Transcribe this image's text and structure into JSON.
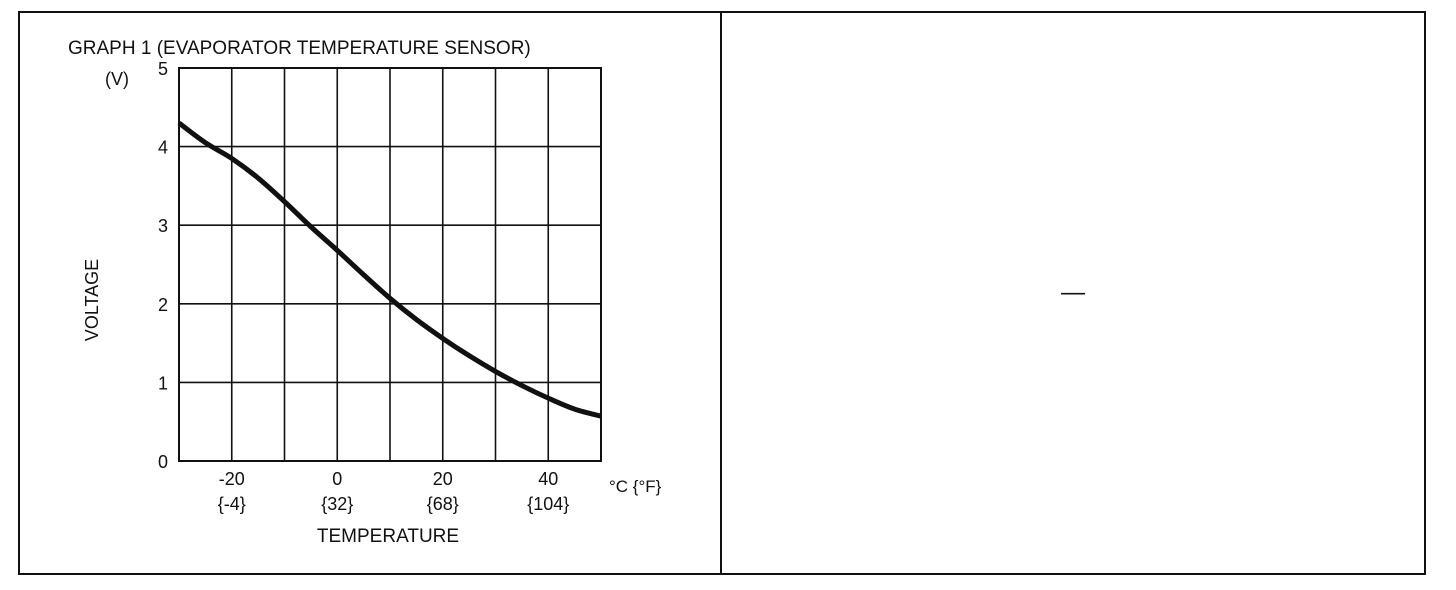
{
  "chart_data": {
    "type": "line",
    "title": "GRAPH 1 (EVAPORATOR TEMPERATURE SENSOR)",
    "xlabel": "TEMPERATURE",
    "ylabel": "VOLTAGE",
    "y_unit": "(V)",
    "x_unit": "°C {°F}",
    "xlim": [
      -30,
      50
    ],
    "ylim": [
      0,
      5
    ],
    "grid": true,
    "x_ticks": [
      {
        "value": -20,
        "label": "-20",
        "sub": "{-4}"
      },
      {
        "value": 0,
        "label": "0",
        "sub": "{32}"
      },
      {
        "value": 20,
        "label": "20",
        "sub": "{68}"
      },
      {
        "value": 40,
        "label": "40",
        "sub": "{104}"
      }
    ],
    "y_ticks": [
      {
        "value": 0,
        "label": "0"
      },
      {
        "value": 1,
        "label": "1"
      },
      {
        "value": 2,
        "label": "2"
      },
      {
        "value": 3,
        "label": "3"
      },
      {
        "value": 4,
        "label": "4"
      },
      {
        "value": 5,
        "label": "5"
      }
    ],
    "series": [
      {
        "x": [
          -30,
          -25,
          -20,
          -15,
          -10,
          -5,
          0,
          5,
          10,
          15,
          20,
          25,
          30,
          35,
          40,
          45,
          50
        ],
        "y": [
          4.3,
          4.05,
          3.85,
          3.6,
          3.3,
          2.98,
          2.68,
          2.37,
          2.07,
          1.8,
          1.56,
          1.34,
          1.14,
          0.96,
          0.8,
          0.66,
          0.57
        ]
      }
    ]
  },
  "right_panel": {
    "value": "—"
  }
}
